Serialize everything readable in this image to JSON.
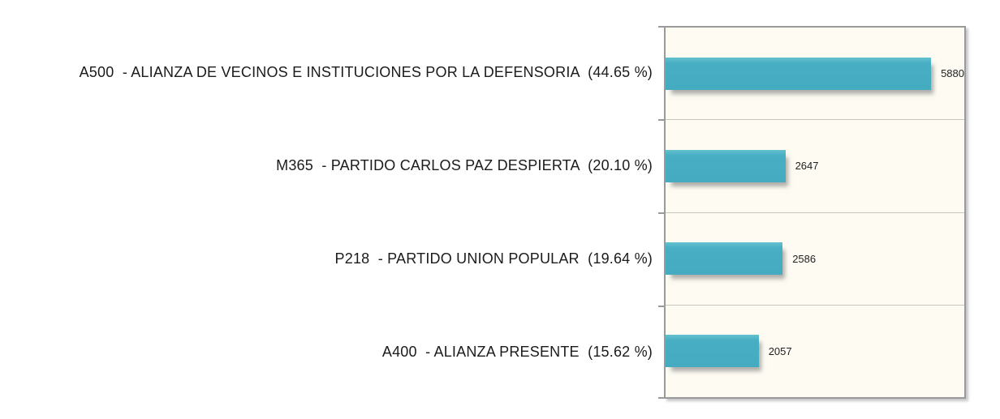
{
  "chart_data": {
    "type": "bar",
    "orientation": "horizontal",
    "title": "",
    "xlabel": "",
    "ylabel": "",
    "xlim": [
      0,
      6600
    ],
    "grid": "row-separators",
    "legend": "none",
    "colors": {
      "bar": "#45adc2",
      "plot_background": "#fdfbf2",
      "frame_border": "#9a9a9a",
      "separator": "#c6c6bd",
      "label_text": "#1b1b1b",
      "value_text": "#222222"
    },
    "rows": [
      {
        "code": "A500",
        "name": "ALIANZA DE VECINOS E INSTITUCIONES POR LA DEFENSORIA",
        "percent": "44.65 %",
        "value": 5880,
        "label": "A500  - ALIANZA DE VECINOS E INSTITUCIONES POR LA DEFENSORIA  (44.65 %)"
      },
      {
        "code": "M365",
        "name": "PARTIDO CARLOS PAZ DESPIERTA",
        "percent": "20.10 %",
        "value": 2647,
        "label": "M365  - PARTIDO CARLOS PAZ DESPIERTA  (20.10 %)"
      },
      {
        "code": "P218",
        "name": "PARTIDO UNION POPULAR",
        "percent": "19.64 %",
        "value": 2586,
        "label": "P218  - PARTIDO UNION POPULAR  (19.64 %)"
      },
      {
        "code": "A400",
        "name": "ALIANZA PRESENTE",
        "percent": "15.62 %",
        "value": 2057,
        "label": "A400  - ALIANZA PRESENTE  (15.62 %)"
      }
    ]
  }
}
